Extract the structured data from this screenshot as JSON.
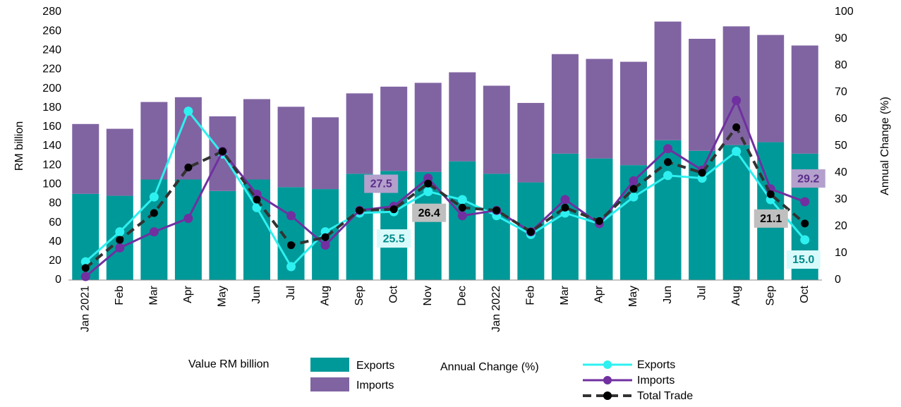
{
  "chart_data": {
    "type": "bar",
    "stacked": true,
    "categories": [
      "Jan 2021",
      "Feb",
      "Mar",
      "Apr",
      "May",
      "Jun",
      "Jul",
      "Aug",
      "Sep",
      "Oct",
      "Nov",
      "Dec",
      "Jan 2022",
      "Feb",
      "Mar",
      "Apr",
      "May",
      "Jun",
      "Jul",
      "Aug",
      "Sep",
      "Oct"
    ],
    "ylabel": "RM billion",
    "y2label": "Annual Change (%)",
    "ylim": [
      0,
      280
    ],
    "yticks": [
      0,
      20,
      40,
      60,
      80,
      100,
      120,
      140,
      160,
      180,
      200,
      220,
      240,
      260,
      280
    ],
    "y2lim": [
      0,
      100
    ],
    "y2ticks": [
      0,
      10,
      20,
      30,
      40,
      50,
      60,
      70,
      80,
      90,
      100
    ],
    "bar_legend_title": "Value RM billion",
    "line_legend_title": "Annual Change (%)",
    "series": [
      {
        "name": "Exports",
        "type": "bar",
        "color": "#009999",
        "values": [
          90,
          88,
          105,
          105,
          93,
          105,
          97,
          95,
          111,
          114,
          113,
          124,
          111,
          102,
          132,
          127,
          120,
          146,
          135,
          141,
          144,
          132
        ]
      },
      {
        "name": "Imports",
        "type": "bar",
        "color": "#8064a2",
        "values": [
          73,
          70,
          81,
          86,
          78,
          84,
          84,
          75,
          84,
          88,
          93,
          93,
          92,
          83,
          104,
          104,
          108,
          124,
          117,
          124,
          112,
          113
        ]
      },
      {
        "name": "Exports",
        "type": "line",
        "axis": "y2",
        "color": "#2ef0f0",
        "label_bg": "#d9fafa",
        "label_color": "#008b8b",
        "values": [
          6.8,
          18,
          31,
          63,
          47,
          27,
          5,
          18,
          25,
          25.5,
          33,
          30,
          24,
          17,
          25,
          21,
          31,
          39,
          38,
          48,
          30,
          15.0
        ],
        "value_labels": [
          null,
          null,
          null,
          null,
          null,
          null,
          null,
          null,
          null,
          "25.5",
          null,
          null,
          null,
          null,
          null,
          null,
          null,
          null,
          null,
          null,
          null,
          "15.0"
        ]
      },
      {
        "name": "Imports",
        "type": "line",
        "axis": "y2",
        "color": "#7030a0",
        "label_bg": "#b4a0cc",
        "label_color": "#5b2d8a",
        "values": [
          1.3,
          12,
          18,
          23,
          48,
          32,
          24,
          13,
          26,
          27.5,
          38,
          24,
          26,
          18,
          30,
          21,
          37,
          49,
          41,
          67,
          34,
          29.2
        ],
        "value_labels": [
          null,
          null,
          null,
          null,
          null,
          null,
          null,
          null,
          null,
          "27.5",
          null,
          null,
          null,
          null,
          null,
          null,
          null,
          null,
          null,
          null,
          null,
          "29.2"
        ]
      },
      {
        "name": "Total Trade",
        "type": "line",
        "axis": "y2",
        "dashed": true,
        "color": "#333333",
        "label_bg": "#bfbfbf",
        "label_color": "#000000",
        "values": [
          4.5,
          15,
          25,
          42,
          48,
          30,
          13,
          16,
          26,
          26.4,
          36,
          27,
          26,
          18,
          27,
          22,
          34,
          44,
          40,
          57,
          32,
          21.1
        ],
        "value_labels": [
          null,
          null,
          null,
          null,
          null,
          null,
          null,
          null,
          null,
          "26.4",
          null,
          null,
          null,
          null,
          null,
          null,
          null,
          null,
          null,
          null,
          null,
          "21.1"
        ]
      }
    ]
  }
}
